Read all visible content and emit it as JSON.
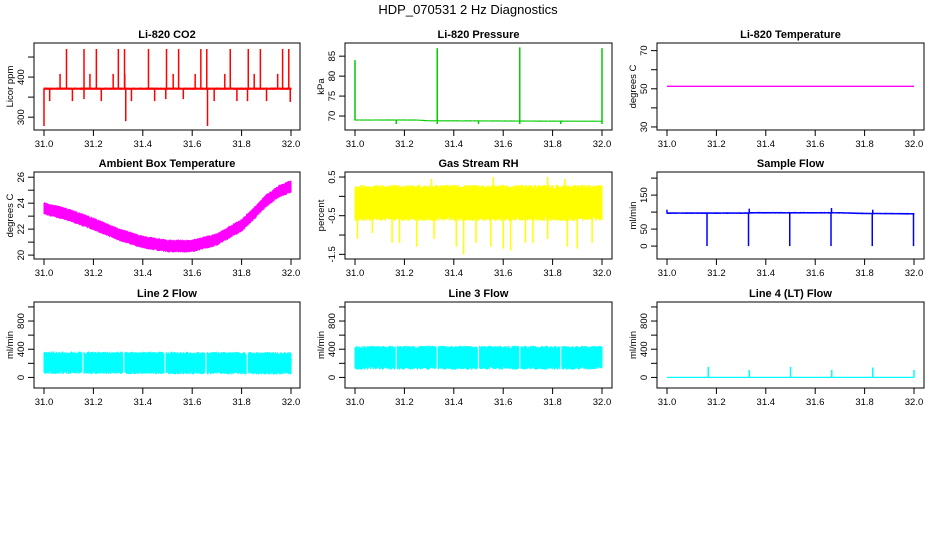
{
  "title": "HDP_070531 2 Hz Diagnostics",
  "chart_data": [
    {
      "type": "line",
      "title": "Li-820 CO2",
      "ylabel": "Licor ppm",
      "color": "#ff0000",
      "xlim": [
        31.0,
        32.0
      ],
      "ylim": [
        268,
        485
      ],
      "xticks": [
        31.0,
        31.2,
        31.4,
        31.6,
        31.8,
        32.0
      ],
      "xticklabels": [
        "31.0",
        "31.2",
        "31.4",
        "31.6",
        "31.8",
        "32.0"
      ],
      "yticks": [
        300,
        350,
        400,
        450
      ],
      "yticklabels": [
        {
          "v": 300,
          "t": "300"
        },
        {
          "v": 400,
          "t": "400"
        }
      ],
      "baseline": [
        [
          31.0,
          371
        ],
        [
          32.0,
          371
        ]
      ],
      "noise": 3,
      "gaps": [],
      "spikes": [
        [
          31.0,
          278
        ],
        [
          31.091,
          470
        ],
        [
          31.162,
          470
        ],
        [
          31.212,
          470
        ],
        [
          31.301,
          470
        ],
        [
          31.326,
          470
        ],
        [
          31.423,
          470
        ],
        [
          31.496,
          470
        ],
        [
          31.545,
          470
        ],
        [
          31.635,
          470
        ],
        [
          31.659,
          470
        ],
        [
          31.754,
          470
        ],
        [
          31.827,
          470
        ],
        [
          31.876,
          470
        ],
        [
          31.966,
          470
        ],
        [
          31.991,
          470
        ],
        [
          31.065,
          408
        ],
        [
          31.186,
          408
        ],
        [
          31.28,
          408
        ],
        [
          31.327,
          408
        ],
        [
          31.523,
          408
        ],
        [
          31.612,
          408
        ],
        [
          31.732,
          408
        ],
        [
          31.851,
          408
        ],
        [
          31.946,
          408
        ],
        [
          31.023,
          340
        ],
        [
          31.115,
          340
        ],
        [
          31.162,
          345
        ],
        [
          31.232,
          340
        ],
        [
          31.331,
          290
        ],
        [
          31.354,
          340
        ],
        [
          31.448,
          340
        ],
        [
          31.493,
          345
        ],
        [
          31.564,
          345
        ],
        [
          31.662,
          278
        ],
        [
          31.689,
          340
        ],
        [
          31.781,
          340
        ],
        [
          31.824,
          340
        ],
        [
          31.901,
          340
        ],
        [
          31.997,
          338
        ]
      ]
    },
    {
      "type": "line",
      "title": "Li-820 Pressure",
      "ylabel": "kPa",
      "color": "#00cc00",
      "xlim": [
        31.0,
        32.0
      ],
      "ylim": [
        66.5,
        88.3
      ],
      "xticks": [
        31.0,
        31.2,
        31.4,
        31.6,
        31.8,
        32.0
      ],
      "xticklabels": [
        "31.0",
        "31.2",
        "31.4",
        "31.6",
        "31.8",
        "32.0"
      ],
      "yticks": [
        70,
        75,
        80,
        85
      ],
      "yticklabels": [
        {
          "v": 70,
          "t": "70"
        },
        {
          "v": 75,
          "t": "75"
        },
        {
          "v": 80,
          "t": "80"
        },
        {
          "v": 85,
          "t": "85"
        }
      ],
      "baseline": [
        [
          31.0,
          69.0
        ],
        [
          31.25,
          69.0
        ],
        [
          31.3,
          68.8
        ],
        [
          32.0,
          68.7
        ]
      ],
      "noise": 0.15,
      "gaps": [],
      "spikes": [
        [
          31.0,
          84
        ],
        [
          31.333,
          87
        ],
        [
          31.667,
          87.2
        ],
        [
          32.0,
          87
        ],
        [
          31.167,
          68.0
        ],
        [
          31.5,
          68.0
        ],
        [
          31.833,
          68.0
        ],
        [
          31.333,
          68.0
        ],
        [
          31.667,
          68.0
        ],
        [
          32.0,
          68.0
        ]
      ]
    },
    {
      "type": "line",
      "title": "Li-820 Temperature",
      "ylabel": "degrees C",
      "color": "#ff00ff",
      "xlim": [
        31.0,
        32.0
      ],
      "ylim": [
        28.4,
        74
      ],
      "xticks": [
        31.0,
        31.2,
        31.4,
        31.6,
        31.8,
        32.0
      ],
      "xticklabels": [
        "31.0",
        "31.2",
        "31.4",
        "31.6",
        "31.8",
        "32.0"
      ],
      "yticks": [
        30,
        40,
        50,
        60,
        70
      ],
      "yticklabels": [
        {
          "v": 30,
          "t": "30"
        },
        {
          "v": 50,
          "t": "50"
        },
        {
          "v": 70,
          "t": "70"
        }
      ],
      "baseline": [
        [
          31.0,
          51.3
        ],
        [
          32.0,
          51.3
        ]
      ],
      "noise": 0,
      "gaps": [],
      "spikes": []
    },
    {
      "type": "line",
      "title": "Ambient Box Temperature",
      "ylabel": "degrees C",
      "color": "#ff00ff",
      "xlim": [
        31.0,
        32.0
      ],
      "ylim": [
        19.7,
        26.4
      ],
      "xticks": [
        31.0,
        31.2,
        31.4,
        31.6,
        31.8,
        32.0
      ],
      "xticklabels": [
        "31.0",
        "31.2",
        "31.4",
        "31.6",
        "31.8",
        "32.0"
      ],
      "yticks": [
        20,
        21,
        22,
        23,
        24,
        25,
        26
      ],
      "yticklabels": [
        {
          "v": 20,
          "t": "20"
        },
        {
          "v": 22,
          "t": "22"
        },
        {
          "v": 24,
          "t": "24"
        },
        {
          "v": 26,
          "t": "26"
        }
      ],
      "baseline": [
        [
          31.0,
          23.6
        ],
        [
          31.1,
          23.1
        ],
        [
          31.2,
          22.4
        ],
        [
          31.3,
          21.6
        ],
        [
          31.4,
          21.0
        ],
        [
          31.5,
          20.7
        ],
        [
          31.6,
          20.7
        ],
        [
          31.7,
          21.2
        ],
        [
          31.8,
          22.3
        ],
        [
          31.85,
          23.2
        ],
        [
          31.9,
          24.2
        ],
        [
          31.95,
          24.9
        ],
        [
          32.0,
          25.3
        ]
      ],
      "noise": 0.5,
      "gaps": [],
      "spikes": []
    },
    {
      "type": "line",
      "title": "Gas Stream RH",
      "ylabel": "percent",
      "color": "#ffff00",
      "xlim": [
        31.0,
        32.0
      ],
      "ylim": [
        -1.62,
        0.63
      ],
      "xticks": [
        31.0,
        31.2,
        31.4,
        31.6,
        31.8,
        32.0
      ],
      "xticklabels": [
        "31.0",
        "31.2",
        "31.4",
        "31.6",
        "31.8",
        "32.0"
      ],
      "yticks": [
        -1.5,
        -1.0,
        -0.5,
        0.0,
        0.5
      ],
      "yticklabels": [
        {
          "v": -1.5,
          "t": "-1.5"
        },
        {
          "v": -0.5,
          "t": "-0.5"
        },
        {
          "v": 0.5,
          "t": "0.5"
        }
      ],
      "baseline": [
        [
          31.0,
          -0.17
        ],
        [
          32.0,
          -0.17
        ]
      ],
      "noise": 0.47,
      "gaps": [],
      "spikes": [
        [
          31.01,
          -1.1
        ],
        [
          31.07,
          -0.95
        ],
        [
          31.15,
          -1.2
        ],
        [
          31.18,
          -1.2
        ],
        [
          31.25,
          -1.3
        ],
        [
          31.32,
          -1.1
        ],
        [
          31.41,
          -1.3
        ],
        [
          31.44,
          -1.5
        ],
        [
          31.49,
          -1.2
        ],
        [
          31.55,
          -1.3
        ],
        [
          31.6,
          -1.35
        ],
        [
          31.63,
          -1.4
        ],
        [
          31.69,
          -1.2
        ],
        [
          31.72,
          -1.2
        ],
        [
          31.78,
          -1.1
        ],
        [
          31.86,
          -1.3
        ],
        [
          31.9,
          -1.35
        ],
        [
          31.96,
          -1.2
        ],
        [
          31.31,
          0.45
        ],
        [
          31.56,
          0.5
        ],
        [
          31.78,
          0.5
        ],
        [
          31.85,
          0.45
        ]
      ]
    },
    {
      "type": "line",
      "title": "Sample Flow",
      "ylabel": "ml/min",
      "color": "#0000ff",
      "xlim": [
        31.0,
        32.0
      ],
      "ylim": [
        -38,
        218
      ],
      "xticks": [
        31.0,
        31.2,
        31.4,
        31.6,
        31.8,
        32.0
      ],
      "xticklabels": [
        "31.0",
        "31.2",
        "31.4",
        "31.6",
        "31.8",
        "32.0"
      ],
      "yticks": [
        0,
        50,
        100,
        150,
        200
      ],
      "yticklabels": [
        {
          "v": 0,
          "t": "0"
        },
        {
          "v": 50,
          "t": "50"
        },
        {
          "v": 150,
          "t": "150"
        }
      ],
      "baseline": [
        [
          31.0,
          97
        ],
        [
          31.33,
          97
        ],
        [
          31.34,
          98
        ],
        [
          31.7,
          98
        ],
        [
          31.8,
          96
        ],
        [
          32.0,
          95
        ]
      ],
      "noise": 2.5,
      "gaps": [],
      "spikes": [
        [
          31.0,
          107
        ],
        [
          31.162,
          0
        ],
        [
          31.33,
          0
        ],
        [
          31.333,
          110
        ],
        [
          31.497,
          0
        ],
        [
          31.664,
          0
        ],
        [
          31.666,
          112
        ],
        [
          31.831,
          0
        ],
        [
          31.833,
          107
        ],
        [
          31.998,
          0
        ]
      ]
    },
    {
      "type": "line",
      "title": "Line 2 Flow",
      "ylabel": "ml/min",
      "color": "#00ffff",
      "xlim": [
        31.0,
        32.0
      ],
      "ylim": [
        -150,
        1070
      ],
      "xticks": [
        31.0,
        31.2,
        31.4,
        31.6,
        31.8,
        32.0
      ],
      "xticklabels": [
        "31.0",
        "31.2",
        "31.4",
        "31.6",
        "31.8",
        "32.0"
      ],
      "yticks": [
        0,
        200,
        400,
        600,
        800,
        1000
      ],
      "yticklabels": [
        {
          "v": 0,
          "t": "0"
        },
        {
          "v": 400,
          "t": "400"
        },
        {
          "v": 800,
          "t": "800"
        }
      ],
      "baseline": [
        [
          31.0,
          210
        ],
        [
          32.0,
          200
        ]
      ],
      "noise": 160,
      "gaps": [
        31.157,
        31.323,
        31.49,
        31.656,
        31.823
      ],
      "spikes": [
        [
          32.0,
          260
        ]
      ]
    },
    {
      "type": "line",
      "title": "Line 3 Flow",
      "ylabel": "ml/min",
      "color": "#00ffff",
      "xlim": [
        31.0,
        32.0
      ],
      "ylim": [
        -150,
        1070
      ],
      "xticks": [
        31.0,
        31.2,
        31.4,
        31.6,
        31.8,
        32.0
      ],
      "xticklabels": [
        "31.0",
        "31.2",
        "31.4",
        "31.6",
        "31.8",
        "32.0"
      ],
      "yticks": [
        0,
        200,
        400,
        600,
        800,
        1000
      ],
      "yticklabels": [
        {
          "v": 0,
          "t": "0"
        },
        {
          "v": 400,
          "t": "400"
        },
        {
          "v": 800,
          "t": "800"
        }
      ],
      "baseline": [
        [
          31.0,
          280
        ],
        [
          32.0,
          280
        ]
      ],
      "noise": 170,
      "gaps": [
        31.167,
        31.333,
        31.5,
        31.667,
        31.833
      ],
      "spikes": []
    },
    {
      "type": "line",
      "title": "Line 4 (LT) Flow",
      "ylabel": "ml/min",
      "color": "#00ffff",
      "xlim": [
        31.0,
        32.0
      ],
      "ylim": [
        -150,
        1070
      ],
      "xticks": [
        31.0,
        31.2,
        31.4,
        31.6,
        31.8,
        32.0
      ],
      "xticklabels": [
        "31.0",
        "31.2",
        "31.4",
        "31.6",
        "31.8",
        "32.0"
      ],
      "yticks": [
        0,
        200,
        400,
        600,
        800,
        1000
      ],
      "yticklabels": [
        {
          "v": 0,
          "t": "0"
        },
        {
          "v": 400,
          "t": "400"
        },
        {
          "v": 800,
          "t": "800"
        }
      ],
      "baseline": [
        [
          31.0,
          0
        ],
        [
          32.0,
          0
        ]
      ],
      "noise": 0,
      "gaps": [],
      "spikes": [
        [
          31.167,
          150
        ],
        [
          31.333,
          105
        ],
        [
          31.5,
          150
        ],
        [
          31.667,
          105
        ],
        [
          31.833,
          140
        ],
        [
          32.0,
          105
        ]
      ]
    }
  ]
}
